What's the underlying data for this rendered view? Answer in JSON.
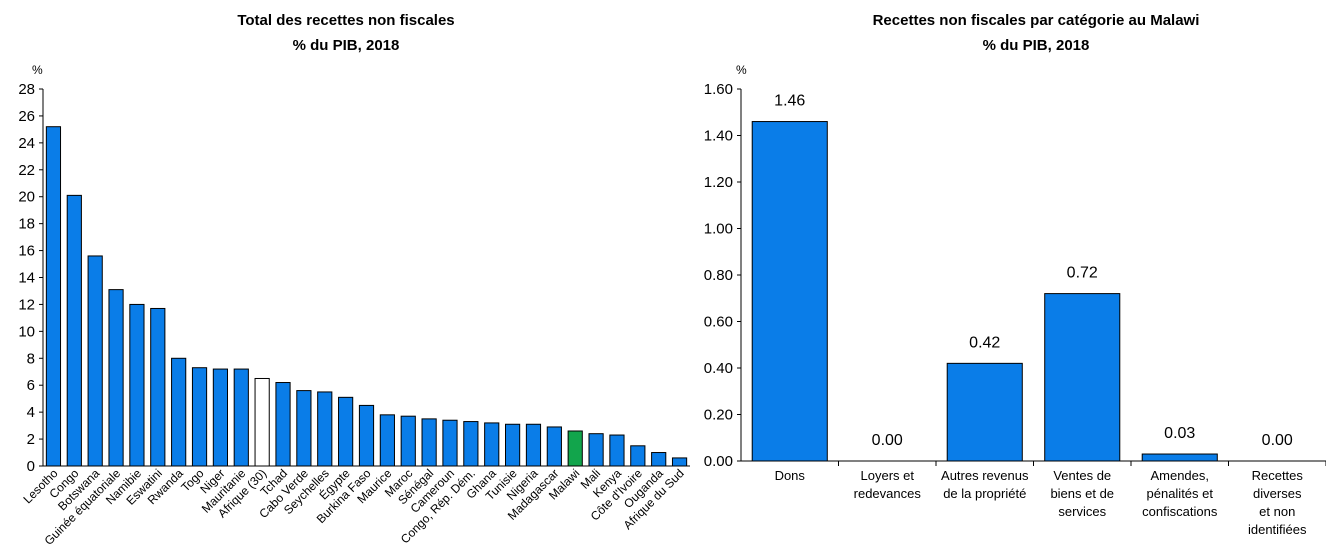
{
  "chart_data": [
    {
      "type": "bar",
      "title": "Total des recettes non fiscales",
      "subtitle": "% du PIB, 2018",
      "ylabel": "%",
      "ylim": [
        0,
        28
      ],
      "yticks": [
        "0",
        "2",
        "4",
        "6",
        "8",
        "10",
        "12",
        "14",
        "16",
        "18",
        "20",
        "22",
        "24",
        "26",
        "28"
      ],
      "categories": [
        "Lesotho",
        "Congo",
        "Botswana",
        "Guinée équatoriale",
        "Namibie",
        "Eswatini",
        "Rwanda",
        "Togo",
        "Niger",
        "Mauritanie",
        "Afrique (30)",
        "Tchad",
        "Cabo Verde",
        "Seychelles",
        "Égypte",
        "Burkina Faso",
        "Maurice",
        "Maroc",
        "Sénégal",
        "Cameroun",
        "Congo, Rép. Dém.",
        "Ghana",
        "Tunisie",
        "Nigeria",
        "Madagascar",
        "Malawi",
        "Mali",
        "Kenya",
        "Côte d'Ivoire",
        "Ouganda",
        "Afrique du Sud"
      ],
      "values": [
        25.2,
        20.1,
        15.6,
        13.1,
        12.0,
        11.7,
        8.0,
        7.3,
        7.2,
        7.2,
        6.5,
        6.2,
        5.6,
        5.5,
        5.1,
        4.5,
        3.8,
        3.7,
        3.5,
        3.4,
        3.3,
        3.2,
        3.1,
        3.1,
        2.9,
        2.6,
        2.4,
        2.3,
        1.5,
        1.0,
        0.6
      ],
      "colors": {
        "default": "#0a7de8",
        "Afrique (30)": "#ffffff",
        "Malawi": "#12a54c"
      },
      "grid": false
    },
    {
      "type": "bar",
      "title": "Recettes non fiscales par catégorie au Malawi",
      "subtitle": "% du PIB, 2018",
      "ylabel": "%",
      "ylim": [
        0,
        1.6
      ],
      "yticks": [
        "0.00",
        "0.20",
        "0.40",
        "0.60",
        "0.80",
        "1.00",
        "1.20",
        "1.40",
        "1.60"
      ],
      "categories": [
        [
          "Dons"
        ],
        [
          "Loyers et",
          "redevances"
        ],
        [
          "Autres revenus",
          "de la propriété"
        ],
        [
          "Ventes de",
          "biens et de",
          "services"
        ],
        [
          "Amendes,",
          "pénalités et",
          "confiscations"
        ],
        [
          "Recettes",
          "diverses",
          "et non",
          "identifiées"
        ]
      ],
      "values": [
        1.46,
        0.0,
        0.42,
        0.72,
        0.03,
        0.0
      ],
      "data_labels": [
        "1.46",
        "0.00",
        "0.42",
        "0.72",
        "0.03",
        "0.00"
      ],
      "colors": {
        "default": "#0a7de8"
      },
      "grid": false
    }
  ]
}
